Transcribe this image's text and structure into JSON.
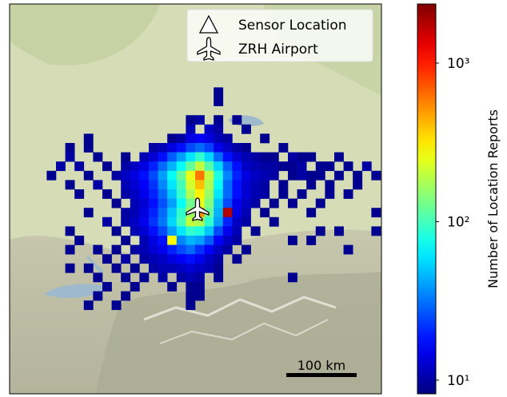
{
  "map": {
    "legend": {
      "items": [
        "Sensor Location",
        "ZRH Airport"
      ]
    },
    "scale_bar": "100 km",
    "heatmap": {
      "colormap": "jet",
      "rows": [
        {
          "row": 9,
          "cols": [
            22
          ],
          "values": [
            9
          ]
        },
        {
          "row": 10,
          "cols": [
            22
          ],
          "values": [
            9
          ]
        },
        {
          "row": 12,
          "cols": [
            19,
            20,
            22,
            24
          ],
          "values": [
            9,
            10,
            9,
            9
          ]
        },
        {
          "row": 13,
          "cols": [
            19,
            21,
            22,
            25
          ],
          "values": [
            11,
            12,
            10,
            9
          ]
        },
        {
          "row": 14,
          "cols": [
            8,
            17,
            18,
            19,
            20,
            21,
            22,
            23,
            27
          ],
          "values": [
            9,
            9,
            10,
            14,
            16,
            14,
            11,
            10,
            9
          ]
        },
        {
          "row": 15,
          "cols": [
            6,
            8,
            15,
            16,
            17,
            18,
            19,
            20,
            21,
            22,
            23,
            24,
            25,
            29
          ],
          "values": [
            9,
            9,
            10,
            11,
            14,
            18,
            25,
            30,
            24,
            15,
            12,
            10,
            9,
            9
          ]
        },
        {
          "row": 16,
          "cols": [
            6,
            9,
            12,
            14,
            15,
            16,
            17,
            18,
            19,
            20,
            21,
            22,
            23,
            24,
            25,
            26,
            27,
            28,
            30,
            31,
            32,
            35
          ],
          "values": [
            10,
            9,
            9,
            11,
            13,
            18,
            28,
            40,
            60,
            90,
            55,
            30,
            18,
            13,
            11,
            10,
            9,
            9,
            10,
            9,
            9,
            9
          ]
        },
        {
          "row": 17,
          "cols": [
            5,
            7,
            10,
            12,
            13,
            14,
            15,
            16,
            17,
            18,
            19,
            20,
            21,
            22,
            23,
            24,
            25,
            26,
            27,
            28,
            29,
            30,
            31,
            33,
            34,
            36,
            38
          ],
          "values": [
            10,
            10,
            9,
            10,
            12,
            14,
            20,
            30,
            45,
            70,
            120,
            200,
            110,
            55,
            28,
            18,
            12,
            11,
            10,
            10,
            9,
            9,
            10,
            9,
            9,
            9,
            10
          ]
        },
        {
          "row": 18,
          "cols": [
            4,
            8,
            11,
            12,
            13,
            14,
            15,
            16,
            17,
            18,
            19,
            20,
            21,
            22,
            23,
            24,
            25,
            26,
            27,
            28,
            30,
            31,
            32,
            33,
            35,
            37,
            39
          ],
          "values": [
            9,
            9,
            10,
            12,
            14,
            18,
            25,
            40,
            70,
            120,
            250,
            600,
            200,
            80,
            35,
            20,
            14,
            12,
            11,
            10,
            9,
            10,
            9,
            9,
            9,
            9,
            9
          ]
        },
        {
          "row": 19,
          "cols": [
            6,
            9,
            12,
            13,
            14,
            15,
            16,
            17,
            18,
            19,
            20,
            21,
            22,
            23,
            24,
            25,
            26,
            27,
            29,
            32,
            34,
            37
          ],
          "values": [
            9,
            10,
            11,
            13,
            16,
            22,
            35,
            60,
            100,
            220,
            400,
            180,
            70,
            30,
            18,
            13,
            11,
            10,
            9,
            9,
            9,
            9
          ]
        },
        {
          "row": 20,
          "cols": [
            7,
            10,
            12,
            13,
            14,
            15,
            16,
            17,
            18,
            19,
            20,
            21,
            22,
            23,
            24,
            25,
            26,
            27,
            29,
            31,
            34,
            36
          ],
          "values": [
            9,
            9,
            10,
            12,
            15,
            20,
            30,
            50,
            90,
            180,
            300,
            160,
            60,
            30,
            18,
            13,
            11,
            10,
            9,
            9,
            9,
            9
          ]
        },
        {
          "row": 21,
          "cols": [
            11,
            13,
            14,
            15,
            16,
            17,
            18,
            19,
            20,
            21,
            22,
            23,
            24,
            25,
            26,
            28,
            30,
            33
          ],
          "values": [
            9,
            11,
            13,
            18,
            26,
            40,
            70,
            130,
            250,
            140,
            50,
            25,
            15,
            12,
            10,
            9,
            9,
            9
          ]
        },
        {
          "row": 22,
          "cols": [
            8,
            12,
            13,
            14,
            15,
            16,
            17,
            18,
            19,
            20,
            21,
            22,
            23,
            24,
            25,
            27,
            32,
            39
          ],
          "values": [
            9,
            10,
            11,
            14,
            20,
            30,
            50,
            90,
            160,
            500,
            120,
            45,
            1800,
            14,
            11,
            9,
            9,
            9
          ]
        },
        {
          "row": 23,
          "cols": [
            10,
            12,
            13,
            14,
            15,
            16,
            17,
            18,
            19,
            20,
            21,
            22,
            23,
            24,
            25,
            28
          ],
          "values": [
            10,
            10,
            12,
            15,
            22,
            32,
            55,
            100,
            200,
            180,
            90,
            40,
            20,
            12,
            10,
            9
          ]
        },
        {
          "row": 24,
          "cols": [
            6,
            11,
            13,
            14,
            15,
            16,
            17,
            18,
            19,
            20,
            21,
            22,
            23,
            24,
            26,
            33,
            35,
            39
          ],
          "values": [
            9,
            9,
            11,
            13,
            18,
            25,
            40,
            60,
            90,
            80,
            50,
            25,
            15,
            11,
            9,
            9,
            9,
            9
          ]
        },
        {
          "row": 25,
          "cols": [
            7,
            12,
            14,
            15,
            16,
            17,
            18,
            19,
            20,
            21,
            22,
            23,
            24,
            30,
            32
          ],
          "values": [
            9,
            9,
            11,
            14,
            18,
            280,
            35,
            45,
            40,
            28,
            16,
            12,
            10,
            9,
            9
          ]
        },
        {
          "row": 26,
          "cols": [
            6,
            9,
            11,
            13,
            14,
            15,
            16,
            17,
            18,
            19,
            20,
            21,
            22,
            23,
            25,
            36
          ],
          "values": [
            9,
            9,
            9,
            10,
            11,
            13,
            15,
            20,
            25,
            30,
            22,
            16,
            12,
            10,
            9,
            9
          ]
        },
        {
          "row": 27,
          "cols": [
            10,
            12,
            14,
            15,
            16,
            17,
            18,
            19,
            20,
            21,
            22,
            24
          ],
          "values": [
            9,
            10,
            10,
            11,
            12,
            14,
            16,
            18,
            15,
            12,
            10,
            9
          ]
        },
        {
          "row": 28,
          "cols": [
            6,
            8,
            11,
            13,
            15,
            16,
            17,
            18,
            19,
            20,
            21,
            22
          ],
          "values": [
            9,
            9,
            9,
            9,
            10,
            11,
            11,
            12,
            13,
            12,
            11,
            9
          ]
        },
        {
          "row": 29,
          "cols": [
            9,
            12,
            14,
            16,
            18,
            19,
            20,
            22,
            30
          ],
          "values": [
            9,
            9,
            9,
            10,
            10,
            11,
            10,
            9,
            9
          ]
        },
        {
          "row": 30,
          "cols": [
            10,
            13,
            17,
            19,
            20
          ],
          "values": [
            9,
            9,
            9,
            9,
            9
          ]
        },
        {
          "row": 31,
          "cols": [
            9,
            12,
            19,
            20
          ],
          "values": [
            9,
            9,
            9,
            9
          ]
        },
        {
          "row": 32,
          "cols": [
            8,
            11,
            19
          ],
          "values": [
            9,
            9,
            9
          ]
        }
      ]
    },
    "colorbar": {
      "label": "Number of Location Reports",
      "scale": "log",
      "lim": [
        8.2,
        2360
      ],
      "ticks": [
        {
          "value": 10,
          "label": "10¹"
        },
        {
          "value": 100,
          "label": "10²"
        },
        {
          "value": 1000,
          "label": "10³"
        }
      ]
    }
  }
}
